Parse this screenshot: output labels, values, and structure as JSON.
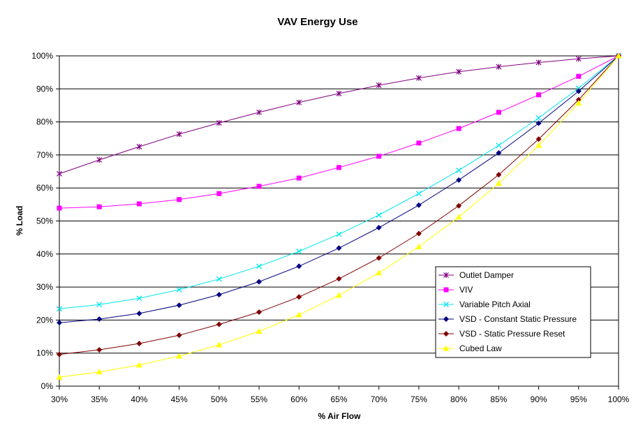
{
  "chart_data": {
    "type": "line",
    "title": "VAV Energy Use",
    "xlabel": "% Air Flow",
    "ylabel": "% Load",
    "x": [
      30,
      35,
      40,
      45,
      50,
      55,
      60,
      65,
      70,
      75,
      80,
      85,
      90,
      95,
      100
    ],
    "x_tick_labels": [
      "30%",
      "35%",
      "40%",
      "45%",
      "50%",
      "55%",
      "60%",
      "65%",
      "70%",
      "75%",
      "80%",
      "85%",
      "90%",
      "95%",
      "100%"
    ],
    "y_tick_labels": [
      "0%",
      "10%",
      "20%",
      "30%",
      "40%",
      "50%",
      "60%",
      "70%",
      "80%",
      "90%",
      "100%"
    ],
    "xlim": [
      30,
      100
    ],
    "ylim": [
      0,
      100
    ],
    "grid": "horizontal",
    "legend_position": "right",
    "series": [
      {
        "name": "Outlet Damper",
        "color": "#800080",
        "marker": "star",
        "values": [
          64.3,
          68.5,
          72.5,
          76.3,
          79.7,
          82.9,
          85.9,
          88.6,
          91.1,
          93.3,
          95.2,
          96.7,
          98.0,
          99.1,
          100
        ]
      },
      {
        "name": "VIV",
        "color": "#ff00ff",
        "marker": "square",
        "values": [
          53.9,
          54.3,
          55.2,
          56.5,
          58.3,
          60.5,
          63.0,
          66.2,
          69.6,
          73.6,
          78.0,
          82.9,
          88.2,
          93.8,
          100
        ]
      },
      {
        "name": "Variable Pitch Axial",
        "color": "#00e5ee",
        "marker": "x",
        "values": [
          23.4,
          24.7,
          26.6,
          29.2,
          32.4,
          36.3,
          40.8,
          46.0,
          51.8,
          58.3,
          65.3,
          72.9,
          81.2,
          90.2,
          100
        ]
      },
      {
        "name": "VSD - Constant Static Pressure",
        "color": "#000080",
        "marker": "diamond",
        "values": [
          19.2,
          20.3,
          22.0,
          24.5,
          27.7,
          31.6,
          36.3,
          41.8,
          48.0,
          54.8,
          62.4,
          70.6,
          79.6,
          89.3,
          100
        ]
      },
      {
        "name": "VSD - Static Pressure Reset",
        "color": "#800000",
        "marker": "diamond",
        "values": [
          9.6,
          11.0,
          12.9,
          15.4,
          18.7,
          22.4,
          27.0,
          32.5,
          38.8,
          46.2,
          54.6,
          64.0,
          74.8,
          86.7,
          100
        ]
      },
      {
        "name": "Cubed Law",
        "color": "#ffff00",
        "marker": "triangle",
        "values": [
          2.7,
          4.3,
          6.4,
          9.1,
          12.5,
          16.6,
          21.6,
          27.5,
          34.3,
          42.2,
          51.2,
          61.4,
          72.9,
          85.7,
          100
        ]
      }
    ]
  }
}
